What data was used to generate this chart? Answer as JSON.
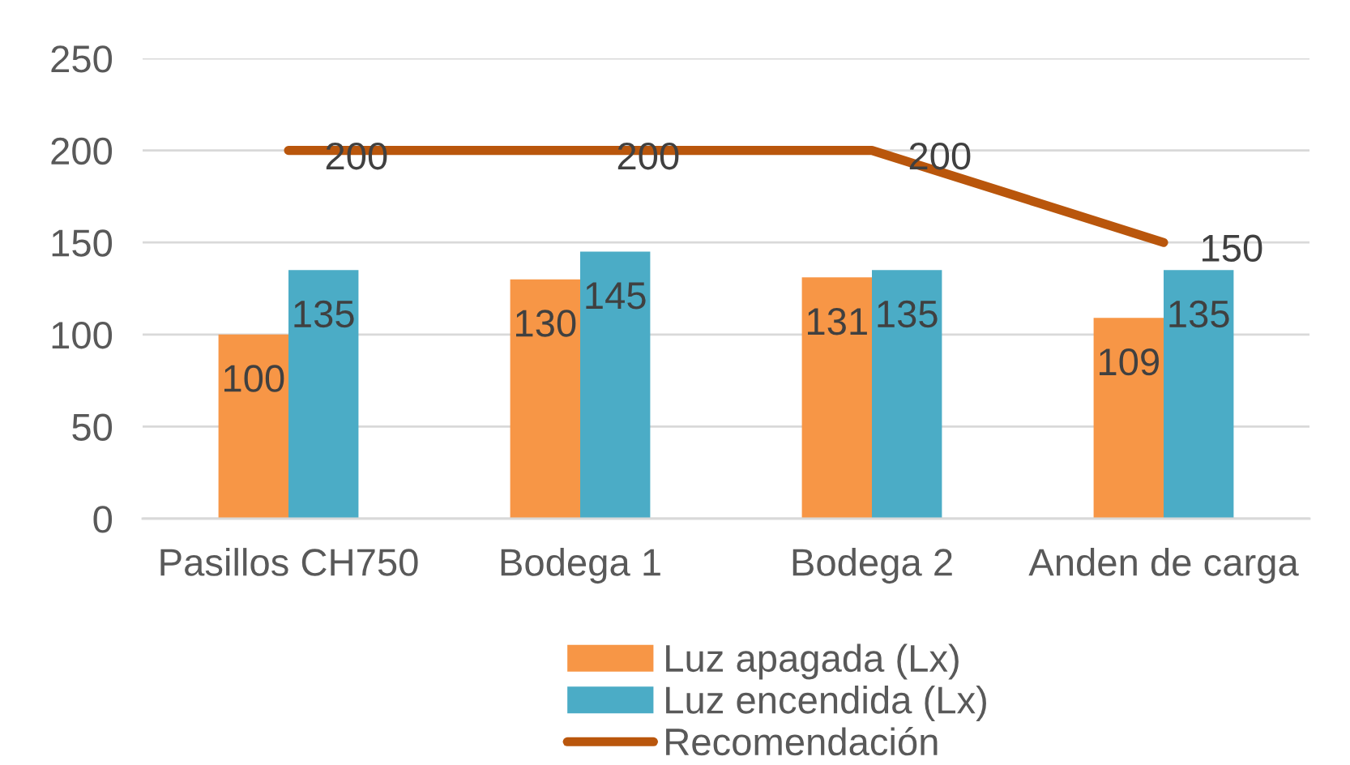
{
  "chart_data": {
    "type": "bar",
    "categories": [
      "Pasillos CH750",
      "Bodega 1",
      "Bodega 2",
      "Anden de carga"
    ],
    "series": [
      {
        "name": "Luz apagada (Lx)",
        "color": "#f79646",
        "values": [
          100,
          130,
          131,
          109
        ]
      },
      {
        "name": "Luz encendida (Lx)",
        "color": "#4bacc6",
        "values": [
          135,
          145,
          135,
          135
        ]
      },
      {
        "name": "Recomendación",
        "type": "line",
        "color": "#b9560c",
        "values": [
          200,
          200,
          200,
          150
        ]
      }
    ],
    "ylim": [
      0,
      250
    ],
    "yticks": [
      0,
      50,
      100,
      150,
      200,
      250
    ],
    "grid": "y",
    "legend": "bottom",
    "data_labels": true
  }
}
